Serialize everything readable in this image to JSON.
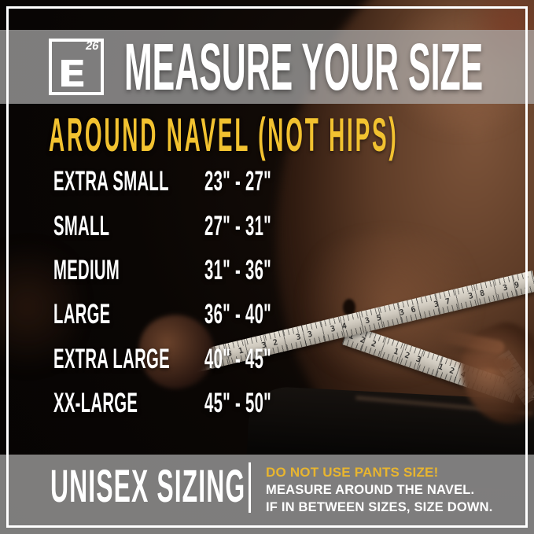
{
  "header": {
    "logo": {
      "letter": "E",
      "number": "26"
    },
    "title": "MEASURE YOUR SIZE"
  },
  "subheading": "AROUND NAVEL (NOT HIPS)",
  "size_chart": {
    "rows": [
      {
        "label": "EXTRA SMALL",
        "range": "23\" - 27\""
      },
      {
        "label": "SMALL",
        "range": "27\" - 31\""
      },
      {
        "label": "MEDIUM",
        "range": "31\" - 36\""
      },
      {
        "label": "LARGE",
        "range": "36\" - 40\""
      },
      {
        "label": "EXTRA LARGE",
        "range": "40\" - 45\""
      },
      {
        "label": "XX-LARGE",
        "range": "45\" - 50\""
      }
    ]
  },
  "footer": {
    "left_label": "UNISEX SIZING",
    "warning": "DO NOT USE PANTS SIZE!",
    "note_line1": "MEASURE AROUND THE NAVEL.",
    "note_line2": "IF IN BETWEEN SIZES, SIZE DOWN."
  },
  "photo": {
    "tape_numbers_upper": "30 31 32 33 34 35 36 37 38 39 40 41 42 43 44 45 46 47 48 49 50 51 52 53 54 55",
    "tape_numbers_lower": "122 123 124",
    "tape_numbers_tip": "36 37 38"
  },
  "colors": {
    "accent_yellow": "#F2C230",
    "warning_yellow": "#E8B52F",
    "text_white": "#FFFFFF",
    "band_overlay_gray": "rgba(176,176,176,0.70)",
    "frame_white": "#FFFFFF",
    "tape_beige": "#CFC9BE"
  }
}
